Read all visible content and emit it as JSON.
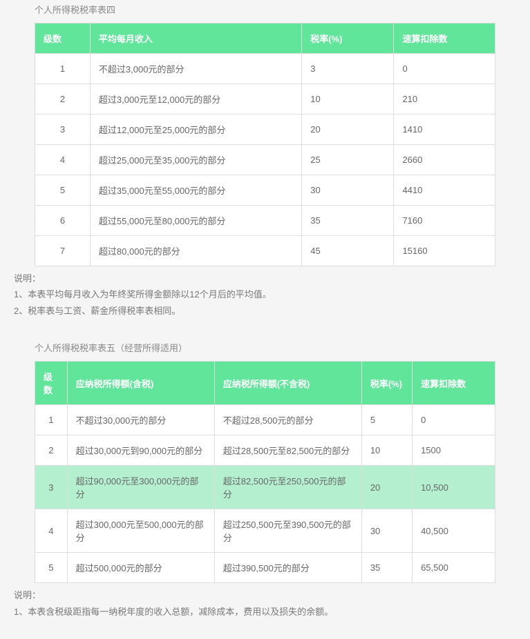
{
  "table4": {
    "title": "个人所得税税率表四",
    "columns": [
      "级数",
      "平均每月收入",
      "税率(%)",
      "速算扣除数"
    ],
    "col_widths": [
      "12%",
      "46%",
      "20%",
      "22%"
    ],
    "rows": [
      [
        "1",
        "不超过3,000元的部分",
        "3",
        "0"
      ],
      [
        "2",
        "超过3,000元至12,000元的部分",
        "10",
        "210"
      ],
      [
        "3",
        "超过12,000元至25,000元的部分",
        "20",
        "1410"
      ],
      [
        "4",
        "超过25,000元至35,000元的部分",
        "25",
        "2660"
      ],
      [
        "5",
        "超过35,000元至55,000元的部分",
        "30",
        "4410"
      ],
      [
        "6",
        "超过55,000元至80,000元的部分",
        "35",
        "7160"
      ],
      [
        "7",
        "超过80,000元的部分",
        "45",
        "15160"
      ]
    ],
    "highlight_row": null,
    "notes_label": "说明：",
    "notes": [
      "1、本表平均每月收入为年终奖所得金额除以12个月后的平均值。",
      "2、税率表与工资、薪金所得税率表相同。"
    ]
  },
  "table5": {
    "title": "个人所得税税率表五（经营所得适用）",
    "columns": [
      "级数",
      "应纳税所得额(含税)",
      "应纳税所得额(不含税)",
      "税率(%)",
      "速算扣除数"
    ],
    "col_widths": [
      "7%",
      "32%",
      "32%",
      "11%",
      "18%"
    ],
    "rows": [
      [
        "1",
        "不超过30,000元的部分",
        "不超过28,500元的部分",
        "5",
        "0"
      ],
      [
        "2",
        "超过30,000元到90,000元的部分",
        "超过28,500元至82,500元的部分",
        "10",
        "1500"
      ],
      [
        "3",
        "超过90,000元至300,000元的部分",
        "超过82,500元至250,500元的部分",
        "20",
        "10,500"
      ],
      [
        "4",
        "超过300,000元至500,000元的部分",
        "超过250,500元至390,500元的部分",
        "30",
        "40,500"
      ],
      [
        "5",
        "超过500,000元的部分",
        "超过390,500元的部分",
        "35",
        "65,500"
      ]
    ],
    "highlight_row": 2,
    "notes_label": "说明：",
    "notes": [
      "1、本表含税级距指每一纳税年度的收入总额，减除成本，费用以及损失的余额。"
    ]
  }
}
